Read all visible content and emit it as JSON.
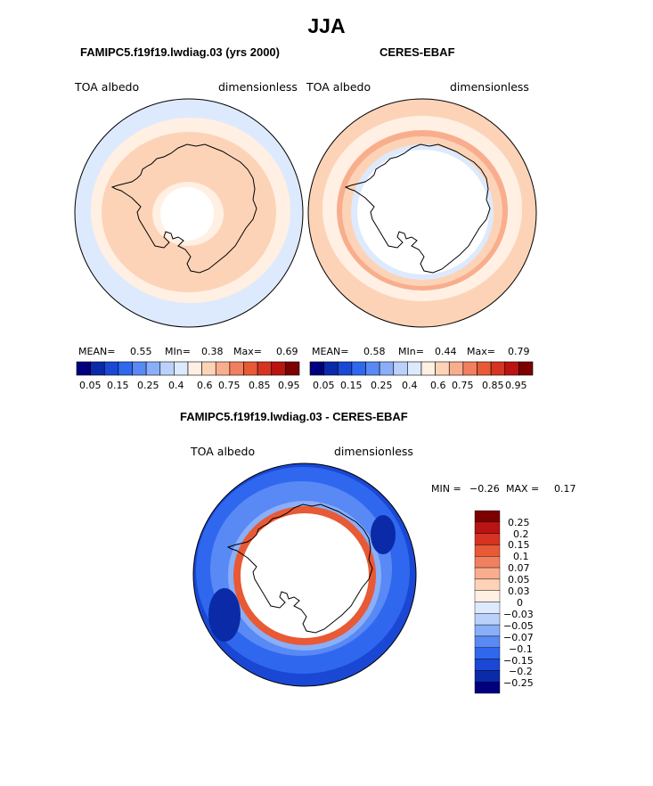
{
  "title": "JJA",
  "chart_data": [
    {
      "type": "heatmap",
      "projection": "south-polar-stereographic",
      "title": "FAMIPC5.f19f19.lwdiag.03 (yrs 2000)",
      "variable": "TOA albedo",
      "units": "dimensionless",
      "stats": {
        "mean_label": "MEAN=",
        "mean": "0.55",
        "min_label": "MIn=",
        "min": "0.38",
        "max_label": "Max=",
        "max": "0.69"
      },
      "contour_levels": [
        "0.05",
        "0.15",
        "0.25",
        "0.4",
        "0.6",
        "0.75",
        "0.85",
        "0.95"
      ]
    },
    {
      "type": "heatmap",
      "projection": "south-polar-stereographic",
      "title": "CERES-EBAF",
      "variable": "TOA albedo",
      "units": "dimensionless",
      "stats": {
        "mean_label": "MEAN=",
        "mean": "0.58",
        "min_label": "MIn=",
        "min": "0.44",
        "max_label": "Max=",
        "max": "0.79"
      },
      "contour_levels": [
        "0.05",
        "0.15",
        "0.25",
        "0.4",
        "0.6",
        "0.75",
        "0.85",
        "0.95"
      ]
    },
    {
      "type": "heatmap",
      "projection": "south-polar-stereographic",
      "title": "FAMIPC5.f19f19.lwdiag.03 - CERES-EBAF",
      "variable": "TOA albedo",
      "units": "dimensionless",
      "stats": {
        "min_label": "MIN =",
        "min": "−0.26",
        "max_label": "MAX =",
        "max": "0.17"
      },
      "contour_levels": [
        "0.25",
        "0.2",
        "0.15",
        "0.1",
        "0.07",
        "0.05",
        "0.03",
        "0",
        "−0.03",
        "−0.05",
        "−0.07",
        "−0.1",
        "−0.15",
        "−0.2",
        "−0.25"
      ]
    }
  ],
  "colors": {
    "hbar": [
      "#00007f",
      "#0a2aa8",
      "#1a48d4",
      "#2f67ef",
      "#5889f5",
      "#8aaef8",
      "#bbd1fb",
      "#ddeafd",
      "#fff0e3",
      "#fdd3b8",
      "#f8ae8d",
      "#f08060",
      "#e85935",
      "#d73322",
      "#b91412",
      "#7d0000"
    ],
    "vbar": [
      "#7d0000",
      "#b91412",
      "#d73322",
      "#e85935",
      "#f08060",
      "#f8ae8d",
      "#fdd3b8",
      "#fff0e3",
      "#ddeafd",
      "#bbd1fb",
      "#8aaef8",
      "#5889f5",
      "#2f67ef",
      "#1a48d4",
      "#0a2aa8",
      "#00007f"
    ]
  }
}
